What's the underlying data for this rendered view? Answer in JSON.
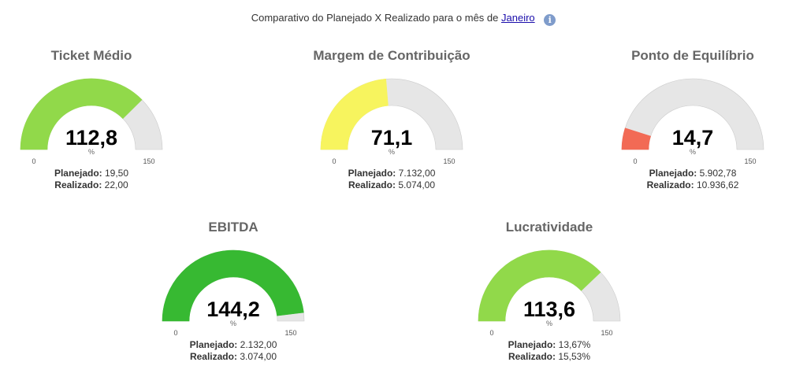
{
  "header": {
    "text": "Comparativo do Planejado X Realizado para o mês de",
    "month": "Janeiro",
    "info_icon": "i"
  },
  "labels": {
    "planned": "Planejado:",
    "actual": "Realizado:"
  },
  "chart_data": [
    {
      "type": "gauge",
      "title": "Ticket Médio",
      "value": 112.8,
      "value_label": "112,8",
      "unit": "%",
      "min": 0,
      "max": 150,
      "color": "#91d94a",
      "planned": "19,50",
      "actual": "22,00"
    },
    {
      "type": "gauge",
      "title": "Margem de Contribuição",
      "value": 71.1,
      "value_label": "71,1",
      "unit": "%",
      "min": 0,
      "max": 150,
      "color": "#f7f45e",
      "planned": "7.132,00",
      "actual": "5.074,00"
    },
    {
      "type": "gauge",
      "title": "Ponto de Equilíbrio",
      "value": 14.7,
      "value_label": "14,7",
      "unit": "%",
      "min": 0,
      "max": 150,
      "color": "#f26a55",
      "planned": "5.902,78",
      "actual": "10.936,62"
    },
    {
      "type": "gauge",
      "title": "EBITDA",
      "value": 144.2,
      "value_label": "144,2",
      "unit": "%",
      "min": 0,
      "max": 150,
      "color": "#37b932",
      "planned": "2.132,00",
      "actual": "3.074,00"
    },
    {
      "type": "gauge",
      "title": "Lucratividade",
      "value": 113.6,
      "value_label": "113,6",
      "unit": "%",
      "min": 0,
      "max": 150,
      "color": "#91d94a",
      "planned": "13,67%",
      "actual": "15,53%"
    }
  ],
  "colors": {
    "track": "#e6e6e6",
    "track_stroke": "#cccccc"
  }
}
